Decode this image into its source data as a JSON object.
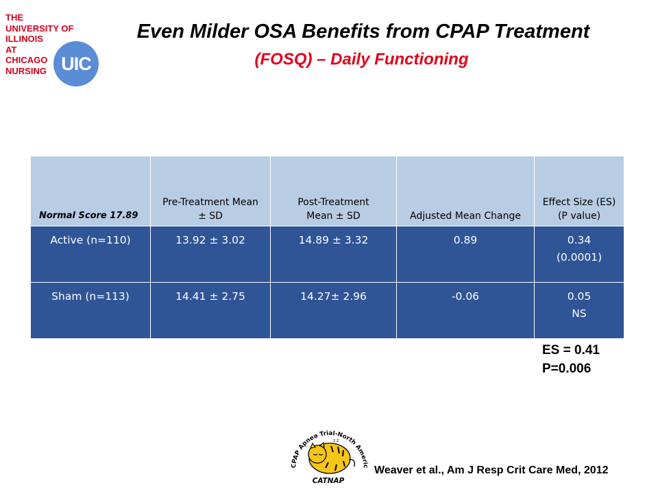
{
  "logo": {
    "lines": [
      "THE",
      "UNIVERSITY OF",
      "ILLINOIS",
      "AT",
      "CHICAGO",
      "NURSING"
    ],
    "badge": "UIC",
    "color": "#d5001c",
    "badge_color": "#5b8dd6"
  },
  "title": "Even Milder OSA Benefits from CPAP Treatment",
  "subtitle": "(FOSQ) – Daily Functioning",
  "table": {
    "header": [
      [
        "Normal Score 17.89"
      ],
      [
        "Pre-Treatment Mean",
        "± SD"
      ],
      [
        "Post-Treatment",
        "Mean ± SD"
      ],
      [
        "Adjusted Mean Change"
      ],
      [
        "Effect Size (ES)",
        "(P value)"
      ]
    ],
    "rows": [
      [
        [
          "Active (n=110)"
        ],
        [
          "13.92 ± 3.02"
        ],
        [
          "14.89 ± 3.32"
        ],
        [
          "0.89"
        ],
        [
          "0.34",
          "(0.0001)"
        ]
      ],
      [
        [
          "Sham (n=113)"
        ],
        [
          "14.41 ± 2.75"
        ],
        [
          "14.27± 2.96"
        ],
        [
          "-0.06"
        ],
        [
          "0.05",
          "NS"
        ]
      ]
    ],
    "header_bg": "#b8cce4",
    "body_bg": "#2f5597"
  },
  "stats": {
    "es": "ES = 0.41",
    "p": "P=0.006"
  },
  "catnap": {
    "arc_text": "CPAP Apnea Trial-North American Program",
    "name": "CATNAP",
    "fill": "#f5c518",
    "icon": "sleeping-tiger-icon"
  },
  "citation": "Weaver et al., Am J Resp Crit Care Med, 2012"
}
